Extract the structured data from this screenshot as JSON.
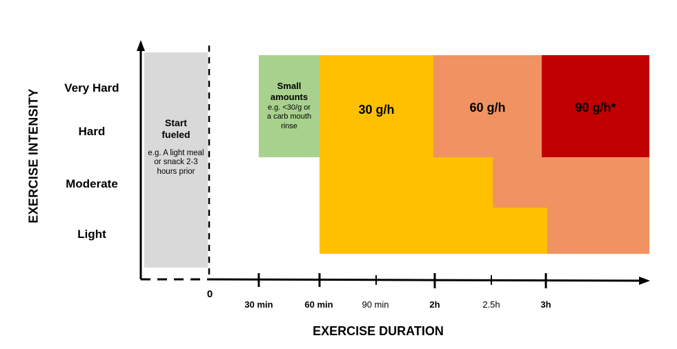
{
  "y_axis": {
    "title": "EXERCISE INTENSITY",
    "levels": [
      "Very Hard",
      "Hard",
      "Moderate",
      "Light"
    ]
  },
  "x_axis": {
    "title": "EXERCISE DURATION",
    "ticks": [
      {
        "label": "0",
        "bold": true
      },
      {
        "label": "30 min",
        "bold": true
      },
      {
        "label": "60 min",
        "bold": true
      },
      {
        "label": "90 min",
        "bold": false
      },
      {
        "label": "2h",
        "bold": true
      },
      {
        "label": "2.5h",
        "bold": false
      },
      {
        "label": "3h",
        "bold": true
      }
    ]
  },
  "zones": {
    "pre": {
      "title": "Start fueled",
      "detail": "e.g. A light meal or snack 2-3 hours prior"
    },
    "small": {
      "title": "Small amounts",
      "detail": "e.g. <30/g or a carb mouth rinse"
    },
    "r30": {
      "label": "30 g/h"
    },
    "r60": {
      "label": "60 g/h"
    },
    "r90": {
      "label": "90 g/h*"
    }
  },
  "colors": {
    "pre": "#d9d9d9",
    "small": "#a9d18e",
    "r30": "#ffc000",
    "r60": "#f09262",
    "r90": "#c00000"
  }
}
